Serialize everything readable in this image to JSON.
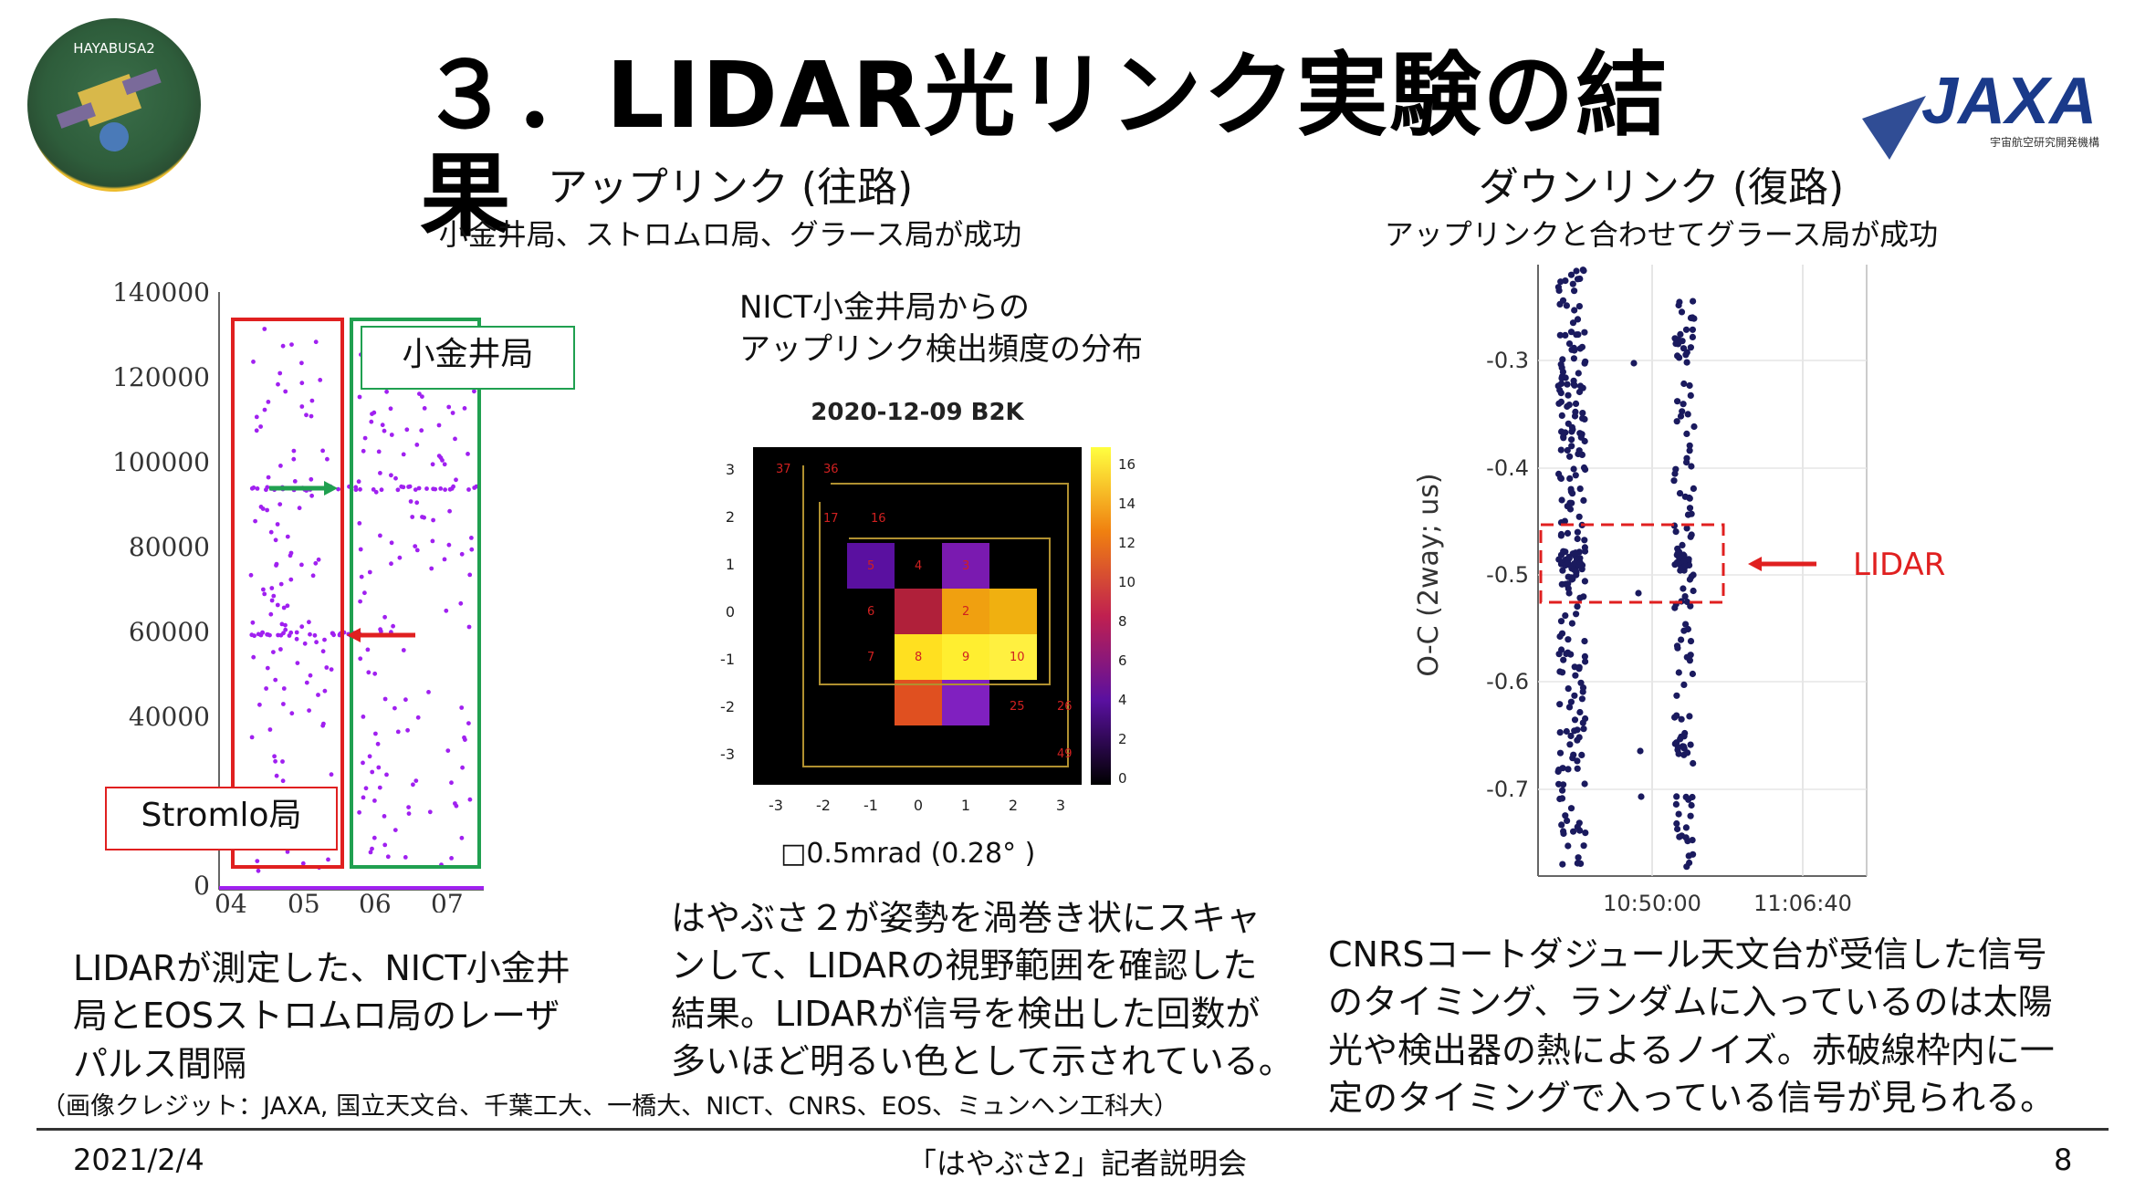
{
  "title": "３．LIDAR光リンク実験の結果",
  "uplink": {
    "heading": "アップリンク (往路)",
    "subheading": "小金井局、ストロムロ局、グラース局が成功"
  },
  "downlink": {
    "heading": "ダウンリンク (復路)",
    "subheading": "アップリンクと合わせてグラース局が成功"
  },
  "left_chart": {
    "y_ticks": [
      "140000",
      "120000",
      "100000",
      "80000",
      "60000",
      "40000",
      "0"
    ],
    "x_ticks": [
      "04",
      "05",
      "06",
      "07"
    ],
    "label_koganei": "小金井局",
    "label_stromlo": "Stromlo局",
    "colors": {
      "points": "#a020f0",
      "stromlo_box": "#e02020",
      "koganei_box": "#20a050"
    }
  },
  "heatmap": {
    "caption_line1": "NICT小金井局からの",
    "caption_line2": "アップリンク検出頻度の分布",
    "chart_title": "2020-12-09 B2K",
    "x_ticks": [
      "-3",
      "-2",
      "-1",
      "0",
      "1",
      "2",
      "3"
    ],
    "y_ticks": [
      "3",
      "2",
      "1",
      "0",
      "-1",
      "-2",
      "-3"
    ],
    "colorbar_ticks": [
      "16",
      "14",
      "12",
      "10",
      "8",
      "6",
      "4",
      "2",
      "0"
    ],
    "cell_labels": [
      "37",
      "36",
      "17",
      "16",
      "5",
      "4",
      "3",
      "6",
      "2",
      "7",
      "8",
      "9",
      "10",
      "25",
      "26",
      "49"
    ],
    "resolution_note": "□0.5mrad (0.28° )"
  },
  "right_chart": {
    "ylabel": "O-C (2way; us)",
    "y_ticks": [
      "-0.3",
      "-0.4",
      "-0.5",
      "-0.6",
      "-0.7"
    ],
    "x_ticks": [
      "10:50:00",
      "11:06:40"
    ],
    "lidar_label": "LIDAR",
    "colors": {
      "points": "#1a1a5e",
      "lidar": "#e02020"
    }
  },
  "captions": {
    "left": [
      "LIDARが測定した、NICT小金井",
      "局とEOSストロムロ局のレーザ",
      "パルス間隔"
    ],
    "middle": [
      "はやぶさ２が姿勢を渦巻き状にスキャ",
      "ンして、LIDARの視野範囲を確認した",
      "結果。LIDARが信号を検出した回数が",
      "多いほど明るい色として示されている。"
    ],
    "right": [
      "CNRSコートダジュール天文台が受信した信号",
      "のタイミング、ランダムに入っているのは太陽",
      "光や検出器の熱によるノイズ。赤破線枠内に一",
      "定のタイミングで入っている信号が見られる。"
    ]
  },
  "credit": "（画像クレジット：JAXA, 国立天文台、千葉工大、一橋大、NICT、CNRS、EOS、ミュンヘン工科大）",
  "footer": {
    "date": "2021/2/4",
    "center": "「はやぶさ2」記者説明会",
    "page": "8"
  },
  "logos": {
    "hayabusa_text": "HAYABUSA2",
    "jaxa_text": "JAXA",
    "jaxa_sub": "宇宙航空研究開発機構"
  }
}
